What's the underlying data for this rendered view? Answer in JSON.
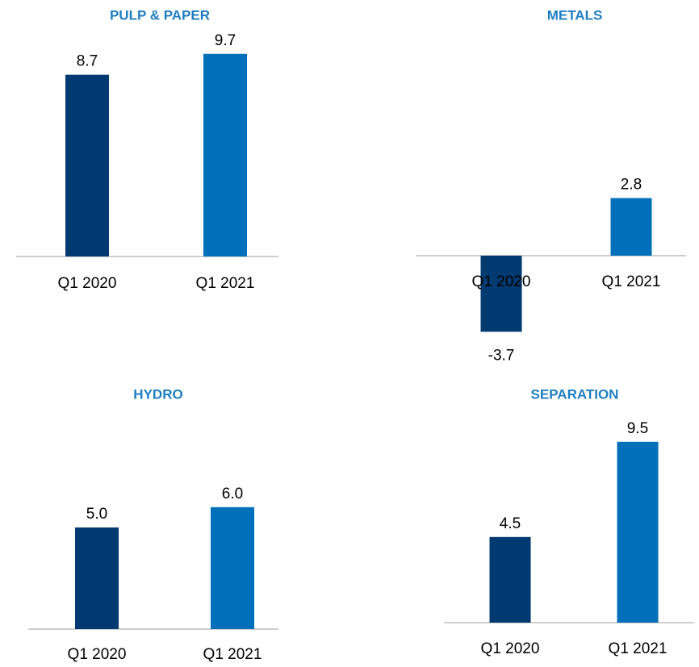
{
  "chart_data": [
    {
      "type": "bar",
      "title": "PULP & PAPER",
      "categories": [
        "Q1 2020",
        "Q1 2021"
      ],
      "values": [
        8.7,
        9.7
      ],
      "colors": [
        "#003a70",
        "#0070ba"
      ]
    },
    {
      "type": "bar",
      "title": "METALS",
      "categories": [
        "Q1 2020",
        "Q1 2021"
      ],
      "values": [
        -3.7,
        2.8
      ],
      "colors": [
        "#003a70",
        "#0070ba"
      ]
    },
    {
      "type": "bar",
      "title": "HYDRO",
      "categories": [
        "Q1 2020",
        "Q1 2021"
      ],
      "values": [
        5.0,
        6.0
      ],
      "value_labels": [
        "5.0",
        "6.0"
      ],
      "colors": [
        "#003a70",
        "#0070ba"
      ]
    },
    {
      "type": "bar",
      "title": "SEPARATION",
      "categories": [
        "Q1 2020",
        "Q1 2021"
      ],
      "values": [
        4.5,
        9.5
      ],
      "colors": [
        "#003a70",
        "#0070ba"
      ]
    }
  ]
}
